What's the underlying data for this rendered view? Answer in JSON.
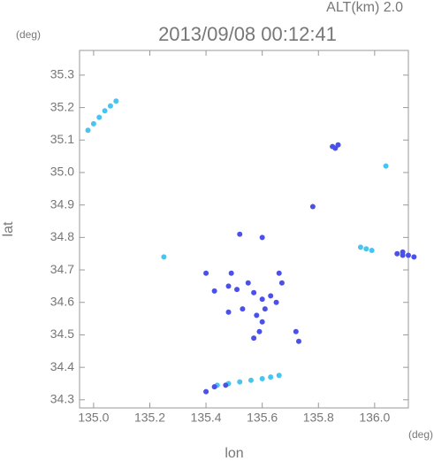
{
  "chart_data": {
    "type": "scatter",
    "title": "2013/09/08 00:12:41",
    "subtitle": "ALT(km) 2.0",
    "y_unit": "(deg)",
    "x_unit": "(deg)",
    "x_label": "lon",
    "y_label": "lat",
    "xlim": [
      134.95,
      136.12
    ],
    "ylim": [
      34.275,
      35.376
    ],
    "xticks": [
      {
        "value": 135.0,
        "label": "135.0"
      },
      135.2,
      135.4,
      135.6,
      135.8,
      {
        "value": 136.0,
        "label": "136.0"
      }
    ],
    "yticks": [
      34.3,
      34.4,
      34.5,
      34.6,
      34.7,
      34.8,
      34.9,
      {
        "value": 35.0,
        "label": "35.0"
      },
      35.1,
      35.2,
      35.3
    ],
    "grid": false,
    "series": [
      {
        "color": "#48c4f0",
        "x": [
          134.98,
          135.0,
          135.02,
          135.04,
          135.06,
          135.08,
          135.25,
          135.95,
          135.97,
          135.99,
          136.04,
          135.44,
          135.48,
          135.52,
          135.56,
          135.6,
          135.63,
          135.66
        ],
        "y": [
          35.13,
          35.15,
          35.17,
          35.19,
          35.205,
          35.22,
          34.74,
          34.77,
          34.765,
          34.76,
          35.02,
          34.345,
          34.35,
          34.355,
          34.36,
          34.365,
          34.37,
          34.375
        ]
      },
      {
        "color": "#4a50e8",
        "x": [
          135.85,
          135.86,
          135.87,
          135.78,
          136.08,
          136.1,
          136.12,
          136.14,
          136.1,
          135.4,
          135.43,
          135.49,
          135.48,
          135.51,
          135.55,
          135.57,
          135.53,
          135.6,
          135.63,
          135.66,
          135.65,
          135.58,
          135.6,
          135.59,
          135.57,
          135.48,
          135.73,
          135.61,
          135.72,
          135.6,
          135.52,
          135.4,
          135.43,
          135.47,
          135.67
        ],
        "y": [
          35.08,
          35.075,
          35.085,
          34.895,
          34.75,
          34.745,
          34.745,
          34.74,
          34.755,
          34.69,
          34.635,
          34.69,
          34.65,
          34.64,
          34.66,
          34.63,
          34.58,
          34.61,
          34.62,
          34.69,
          34.6,
          34.56,
          34.54,
          34.51,
          34.49,
          34.57,
          34.48,
          34.58,
          34.51,
          34.8,
          34.81,
          34.325,
          34.34,
          34.345,
          34.66
        ]
      }
    ]
  }
}
